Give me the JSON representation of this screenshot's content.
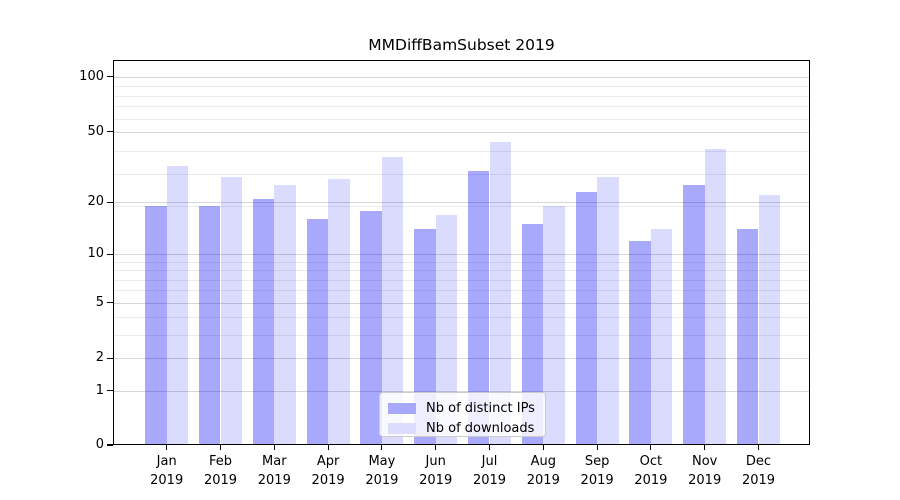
{
  "chart_data": {
    "type": "bar",
    "title": "MMDiffBamSubset 2019",
    "categories": [
      "Jan 2019",
      "Feb 2019",
      "Mar 2019",
      "Apr 2019",
      "May 2019",
      "Jun 2019",
      "Jul 2019",
      "Aug 2019",
      "Sep 2019",
      "Oct 2019",
      "Nov 2019",
      "Dec 2019"
    ],
    "x_tick_labels": [
      [
        "Jan",
        "2019"
      ],
      [
        "Feb",
        "2019"
      ],
      [
        "Mar",
        "2019"
      ],
      [
        "Apr",
        "2019"
      ],
      [
        "May",
        "2019"
      ],
      [
        "Jun",
        "2019"
      ],
      [
        "Jul",
        "2019"
      ],
      [
        "Aug",
        "2019"
      ],
      [
        "Sep",
        "2019"
      ],
      [
        "Oct",
        "2019"
      ],
      [
        "Nov",
        "2019"
      ],
      [
        "Dec",
        "2019"
      ]
    ],
    "series": [
      {
        "name": "Nb of distinct IPs",
        "values": [
          19,
          19,
          21,
          16,
          18,
          14,
          30,
          15,
          23,
          12,
          25,
          14
        ],
        "fill": "rgba(0,0,250,0.34)",
        "legend_color": "#a8a8fa"
      },
      {
        "name": "Nb of downloads",
        "values": [
          32,
          28,
          25,
          27,
          36,
          17,
          44,
          19,
          28,
          14,
          40,
          22
        ],
        "fill": "rgba(0,0,250,0.14)",
        "legend_color": "#dcdcfc"
      }
    ],
    "xlabel": "",
    "ylabel": "",
    "yscale": "log1p",
    "y_major_ticks": [
      0,
      1,
      2,
      5,
      10,
      20,
      50,
      100
    ],
    "y_minor_ticks": [
      3,
      4,
      6,
      7,
      8,
      9,
      19,
      29,
      39,
      59,
      69,
      79,
      89
    ],
    "ylim": [
      0,
      125
    ],
    "grid": true,
    "legend_position": "lower center"
  },
  "colors": {
    "axis": "#000000",
    "grid_major": "#d7d7d7",
    "grid_minor": "#ebebeb",
    "legend_border": "#cccccc",
    "background": "#ffffff"
  }
}
